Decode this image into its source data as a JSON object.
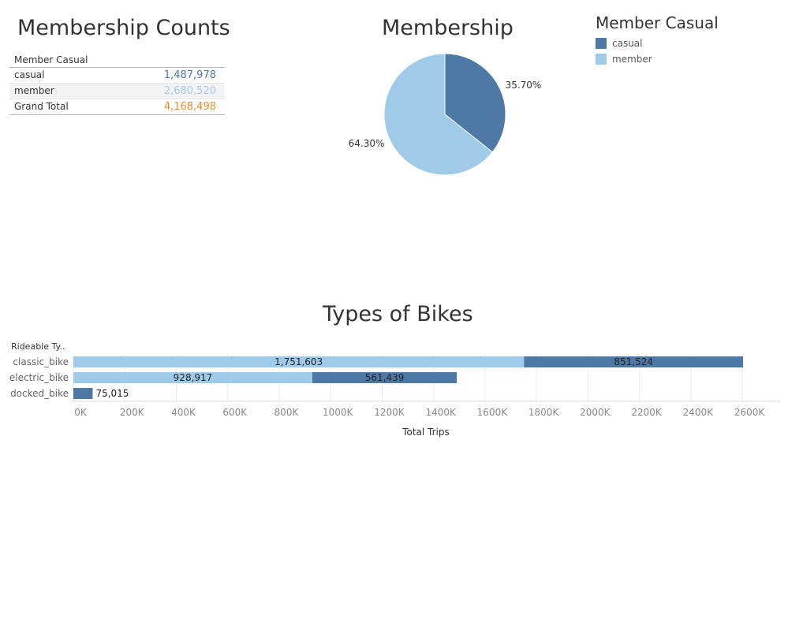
{
  "colors": {
    "casual": "#4e79a7",
    "member": "#a0cbe8",
    "grand_total": "#f28e2b",
    "text": "#333333",
    "muted": "#888888"
  },
  "counts": {
    "title": "Membership Counts",
    "header": "Member Casual",
    "rows": [
      {
        "label": "casual",
        "value": "1,487,978"
      },
      {
        "label": "member",
        "value": "2,680,520"
      }
    ],
    "total": {
      "label": "Grand Total",
      "value": "4,168,498"
    }
  },
  "legend": {
    "title": "Member Casual",
    "items": [
      {
        "label": "casual"
      },
      {
        "label": "member"
      }
    ]
  },
  "chart_data": [
    {
      "type": "pie",
      "title": "Membership",
      "slices": [
        {
          "label": "casual",
          "value": 35.7,
          "display": "35.70%"
        },
        {
          "label": "member",
          "value": 64.3,
          "display": "64.30%"
        }
      ]
    },
    {
      "type": "bar",
      "orientation": "horizontal",
      "stacked": true,
      "title": "Types of Bikes",
      "row_header": "Rideable Ty..",
      "xlabel": "Total Trips",
      "categories": [
        "classic_bike",
        "electric_bike",
        "docked_bike"
      ],
      "series": [
        {
          "name": "member",
          "values": [
            1751603,
            928917,
            0
          ],
          "labels": [
            "1,751,603",
            "928,917",
            ""
          ]
        },
        {
          "name": "casual",
          "values": [
            851524,
            561439,
            75015
          ],
          "labels": [
            "851,524",
            "561,439",
            "75,015"
          ]
        }
      ],
      "xlim": [
        0,
        2750000
      ],
      "ticks": [
        {
          "v": 0,
          "label": "0K"
        },
        {
          "v": 200000,
          "label": "200K"
        },
        {
          "v": 400000,
          "label": "400K"
        },
        {
          "v": 600000,
          "label": "600K"
        },
        {
          "v": 800000,
          "label": "800K"
        },
        {
          "v": 1000000,
          "label": "1000K"
        },
        {
          "v": 1200000,
          "label": "1200K"
        },
        {
          "v": 1400000,
          "label": "1400K"
        },
        {
          "v": 1600000,
          "label": "1600K"
        },
        {
          "v": 1800000,
          "label": "1800K"
        },
        {
          "v": 2000000,
          "label": "2000K"
        },
        {
          "v": 2200000,
          "label": "2200K"
        },
        {
          "v": 2400000,
          "label": "2400K"
        },
        {
          "v": 2600000,
          "label": "2600K"
        }
      ],
      "grid": true
    }
  ]
}
